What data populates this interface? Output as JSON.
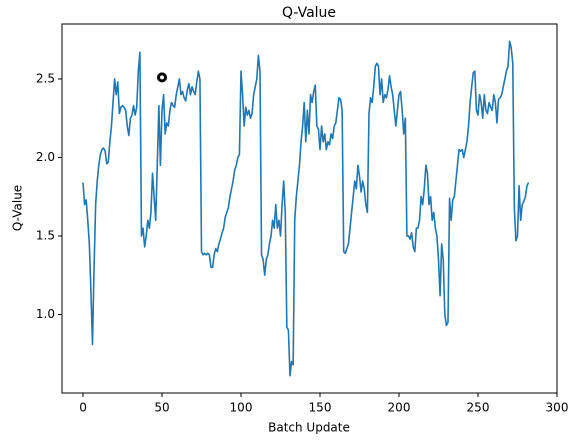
{
  "chart_data": {
    "type": "line",
    "title": "Q-Value",
    "x_label": "Batch Update",
    "y_label": "Q-Value",
    "color": "#1f77b4",
    "values": [
      1.84,
      1.7,
      1.73,
      1.6,
      1.45,
      1.15,
      0.81,
      1.3,
      1.7,
      1.85,
      1.95,
      2.02,
      2.05,
      2.06,
      2.04,
      1.96,
      1.97,
      2.1,
      2.2,
      2.35,
      2.5,
      2.4,
      2.48,
      2.28,
      2.32,
      2.33,
      2.32,
      2.3,
      2.2,
      2.14,
      2.25,
      2.27,
      2.33,
      2.27,
      2.32,
      2.55,
      2.67,
      1.5,
      1.55,
      1.43,
      1.5,
      1.6,
      1.55,
      1.65,
      1.9,
      1.75,
      1.6,
      1.95,
      2.33,
      1.95,
      2.3,
      2.4,
      2.15,
      2.22,
      2.2,
      2.3,
      2.35,
      2.33,
      2.32,
      2.4,
      2.45,
      2.5,
      2.4,
      2.42,
      2.38,
      2.36,
      2.43,
      2.47,
      2.4,
      2.45,
      2.42,
      2.4,
      2.48,
      2.55,
      2.5,
      1.4,
      1.38,
      1.39,
      1.38,
      1.39,
      1.38,
      1.3,
      1.3,
      1.38,
      1.42,
      1.4,
      1.45,
      1.48,
      1.52,
      1.55,
      1.62,
      1.65,
      1.68,
      1.75,
      1.8,
      1.85,
      1.92,
      1.95,
      2.0,
      2.02,
      2.55,
      2.4,
      2.2,
      2.32,
      2.27,
      2.3,
      2.25,
      2.28,
      2.4,
      2.45,
      2.5,
      2.65,
      2.55,
      1.38,
      1.35,
      1.25,
      1.35,
      1.38,
      1.45,
      1.5,
      1.6,
      1.55,
      1.7,
      1.55,
      1.6,
      1.5,
      1.7,
      1.85,
      1.65,
      0.92,
      0.9,
      0.61,
      0.7,
      0.68,
      1.6,
      1.75,
      1.85,
      1.95,
      2.1,
      2.2,
      2.35,
      2.1,
      2.3,
      2.15,
      2.4,
      2.35,
      2.42,
      2.46,
      2.2,
      2.18,
      2.05,
      2.2,
      2.1,
      2.15,
      2.05,
      2.1,
      2.08,
      2.15,
      2.12,
      2.2,
      2.22,
      2.3,
      2.38,
      2.37,
      2.3,
      1.4,
      1.39,
      1.42,
      1.45,
      1.55,
      1.65,
      1.75,
      1.85,
      1.8,
      1.95,
      1.88,
      1.78,
      1.85,
      1.8,
      1.7,
      1.65,
      2.28,
      2.38,
      2.35,
      2.45,
      2.58,
      2.6,
      2.58,
      2.4,
      2.5,
      2.35,
      2.4,
      2.38,
      2.43,
      2.52,
      2.45,
      2.4,
      2.3,
      2.2,
      2.3,
      2.4,
      2.42,
      2.3,
      2.15,
      2.25,
      1.5,
      1.5,
      1.48,
      1.52,
      1.43,
      1.4,
      1.55,
      1.55,
      1.6,
      1.75,
      1.7,
      1.8,
      1.95,
      1.9,
      1.7,
      1.75,
      1.6,
      1.65,
      1.55,
      1.5,
      1.35,
      1.12,
      1.45,
      1.35,
      1.0,
      0.93,
      0.95,
      1.74,
      1.6,
      1.73,
      1.75,
      1.85,
      1.95,
      2.05,
      2.04,
      2.05,
      2.0,
      2.05,
      2.1,
      2.2,
      2.35,
      2.45,
      2.54,
      2.55,
      2.3,
      2.27,
      2.4,
      2.35,
      2.25,
      2.4,
      2.3,
      2.28,
      2.35,
      2.32,
      2.3,
      2.4,
      2.35,
      2.22,
      2.37,
      2.38,
      2.4,
      2.45,
      2.5,
      2.55,
      2.58,
      2.74,
      2.7,
      2.6,
      1.68,
      1.47,
      1.5,
      1.82,
      1.6,
      1.7,
      1.72,
      1.75,
      1.82,
      1.84
    ],
    "marker": {
      "x": 50,
      "y": 2.51,
      "color": "#000000"
    },
    "xlim": [
      -13.3,
      300
    ],
    "xticks": [
      0,
      50,
      100,
      150,
      200,
      250,
      300
    ],
    "ylim": [
      0.5,
      2.85
    ],
    "yticks": [
      {
        "value": 1.0,
        "label": "1.0"
      },
      {
        "value": 1.5,
        "label": "1.5"
      },
      {
        "value": 2.0,
        "label": "2.0"
      },
      {
        "value": 2.5,
        "label": "2.5"
      }
    ]
  }
}
